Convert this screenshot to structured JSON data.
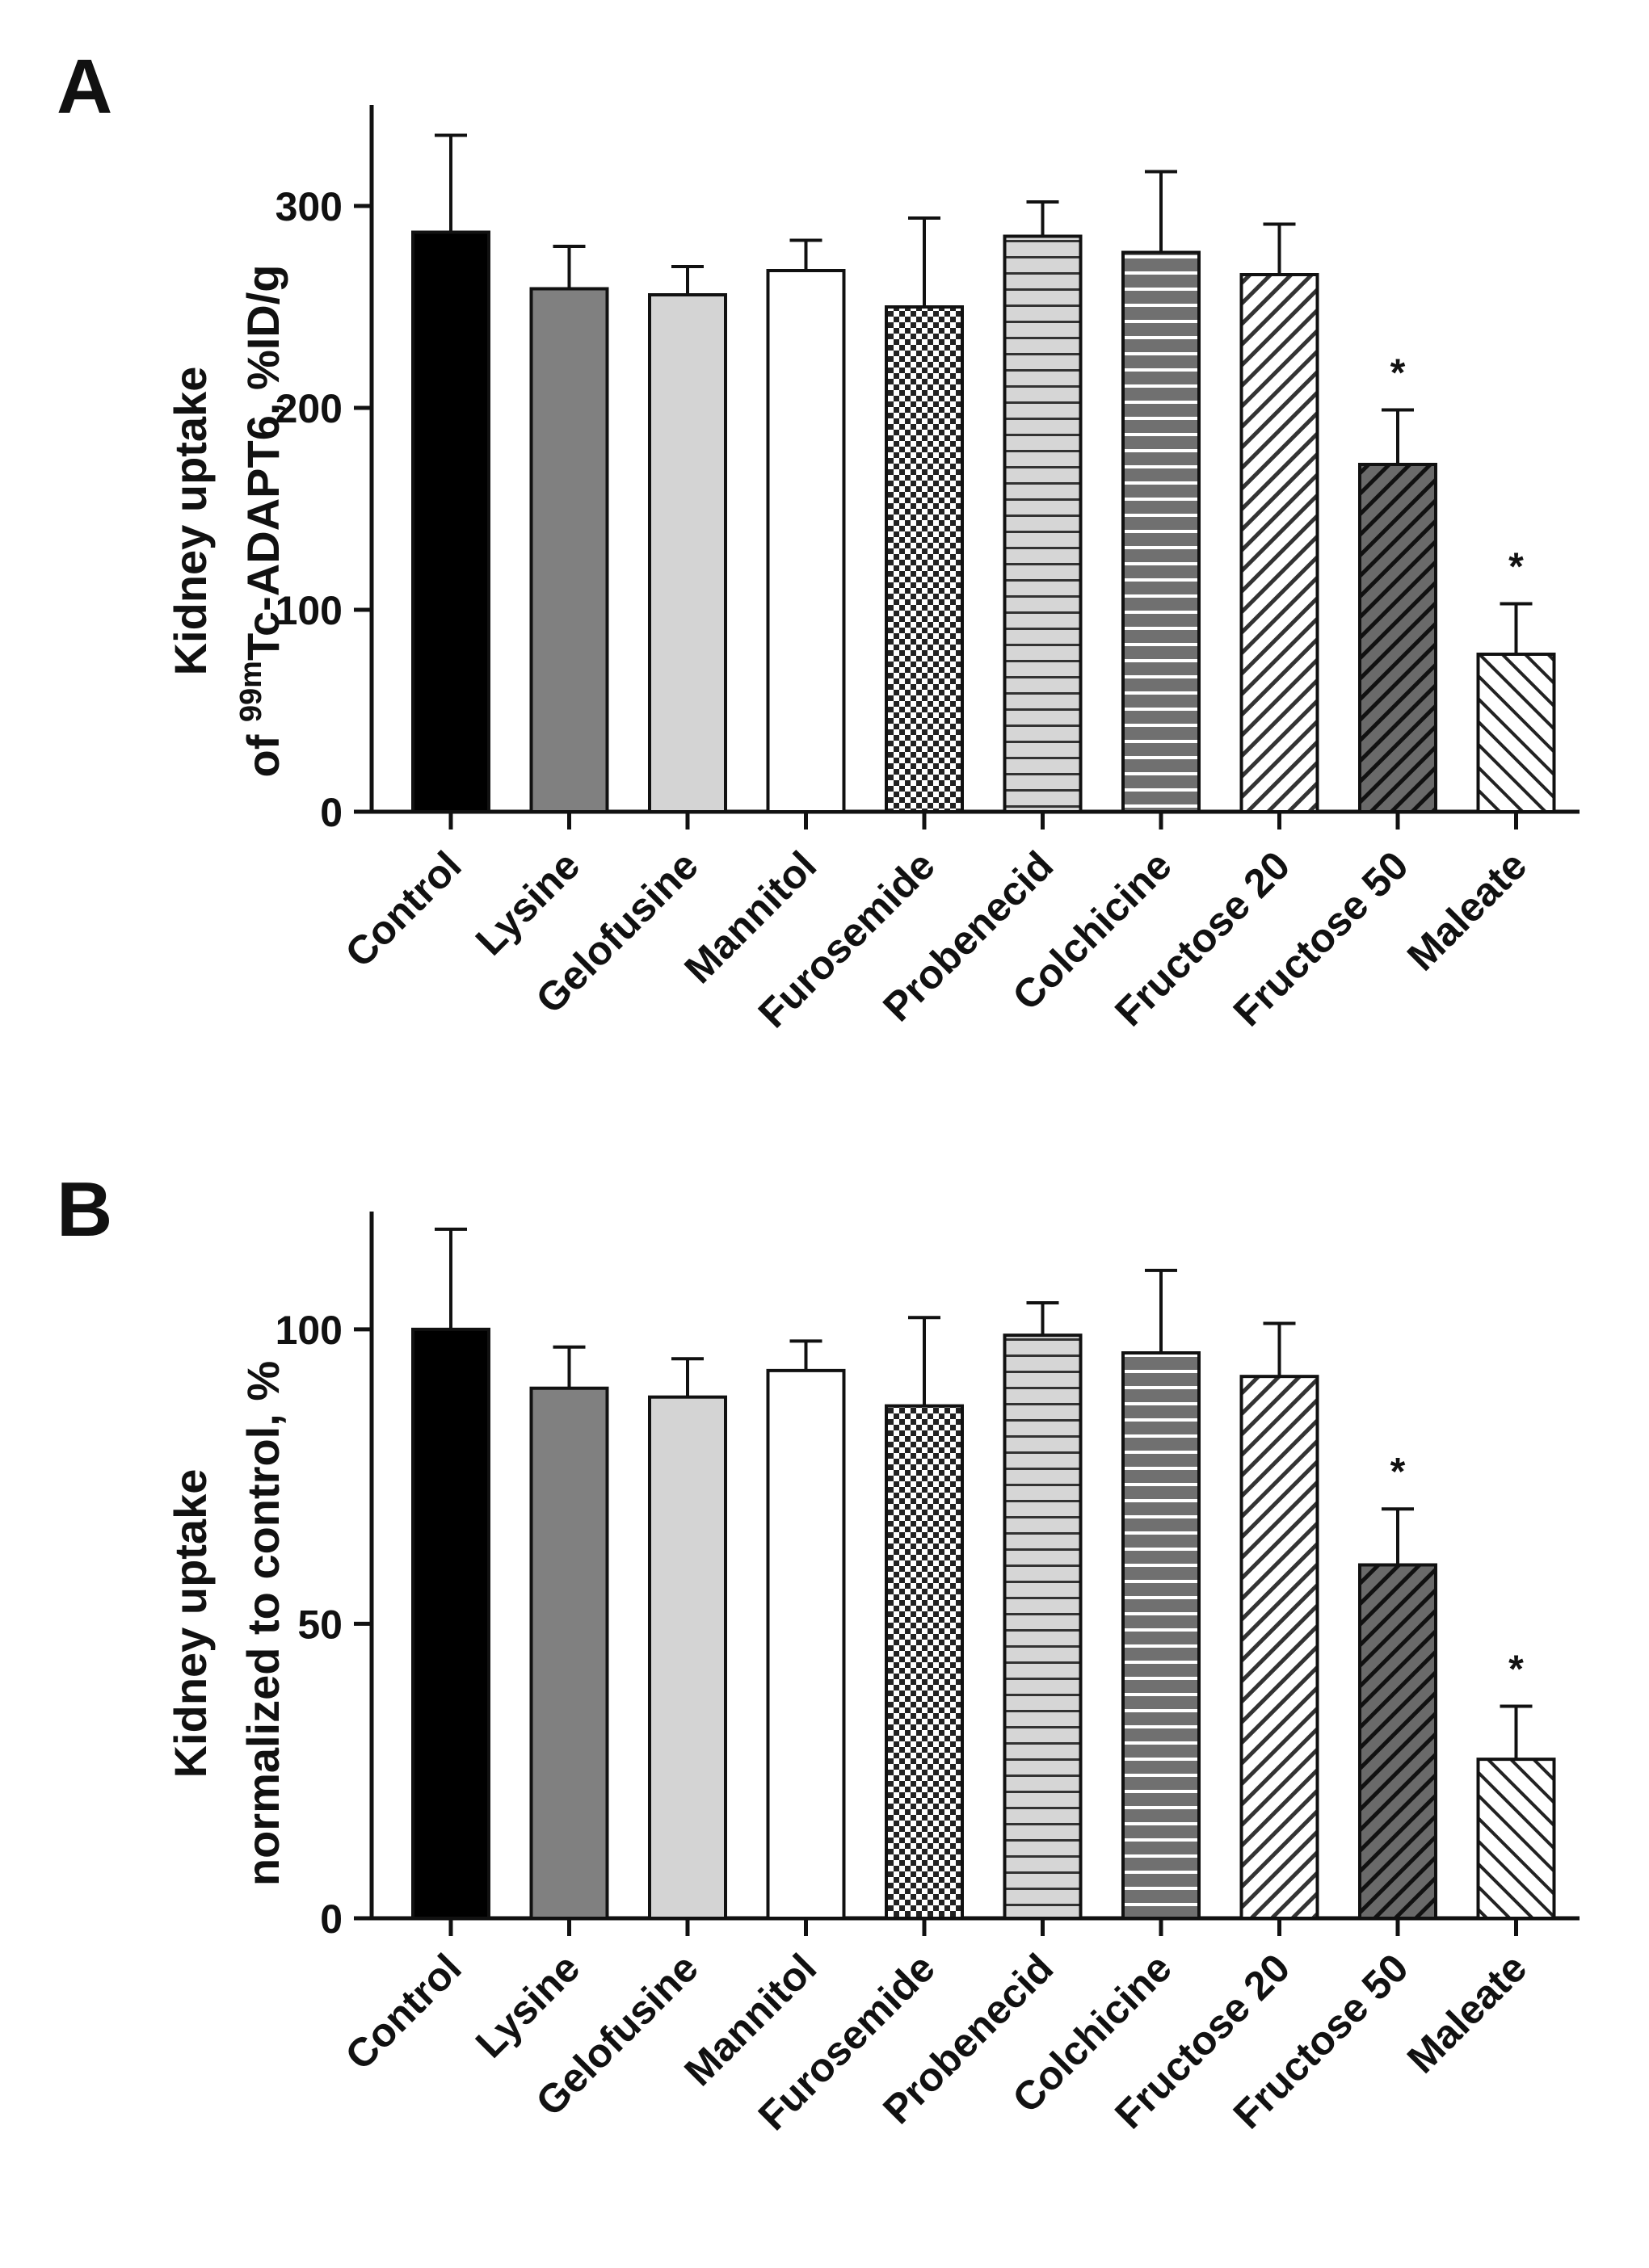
{
  "chart_data": [
    {
      "type": "bar",
      "panel": "A",
      "ylabel_parts": {
        "pre": "of ",
        "sup": "99m",
        "post": "Tc-ADAPT6, %ID/g",
        "line1": "Kidney uptake"
      },
      "ylim": [
        0,
        350
      ],
      "yticks": [
        0,
        100,
        200,
        300
      ],
      "categories": [
        "Control",
        "Lysine",
        "Gelofusine",
        "Mannitol",
        "Furosemide",
        "Probenecid",
        "Colchicine",
        "Fructose 20",
        "Fructose 50",
        "Maleate"
      ],
      "values": [
        287,
        259,
        256,
        268,
        250,
        285,
        277,
        266,
        172,
        78
      ],
      "errors": [
        48,
        21,
        14,
        15,
        44,
        17,
        40,
        25,
        27,
        25
      ],
      "significance": [
        "",
        "",
        "",
        "",
        "",
        "",
        "",
        "",
        "*",
        "*"
      ],
      "patterns": [
        "solid-black",
        "solid-gray",
        "solid-light",
        "solid-white",
        "checker",
        "hstripe-light",
        "hstripe-dark",
        "diag-light",
        "diag-dark",
        "diag-back"
      ]
    },
    {
      "type": "bar",
      "panel": "B",
      "ylabel_lines": [
        "Kidney uptake",
        "normalized to control, %"
      ],
      "ylim": [
        0,
        120
      ],
      "yticks": [
        0,
        50,
        100
      ],
      "categories": [
        "Control",
        "Lysine",
        "Gelofusine",
        "Mannitol",
        "Furosemide",
        "Probenecid",
        "Colchicine",
        "Fructose 20",
        "Fructose 50",
        "Maleate"
      ],
      "values": [
        100,
        90,
        88.5,
        93,
        87,
        99,
        96,
        92,
        60,
        27
      ],
      "errors": [
        17,
        7,
        6.5,
        5,
        15,
        5.5,
        14,
        9,
        9.5,
        9
      ],
      "significance": [
        "",
        "",
        "",
        "",
        "",
        "",
        "",
        "",
        "*",
        "*"
      ],
      "patterns": [
        "solid-black",
        "solid-gray",
        "solid-light",
        "solid-white",
        "checker",
        "hstripe-light",
        "hstripe-dark",
        "diag-light",
        "diag-dark",
        "diag-back"
      ]
    }
  ],
  "colors": {
    "axis": "#111111",
    "black": "#000000",
    "gray": "#808080",
    "light": "#d4d4d4",
    "white": "#ffffff",
    "dark": "#6f6f6f"
  }
}
